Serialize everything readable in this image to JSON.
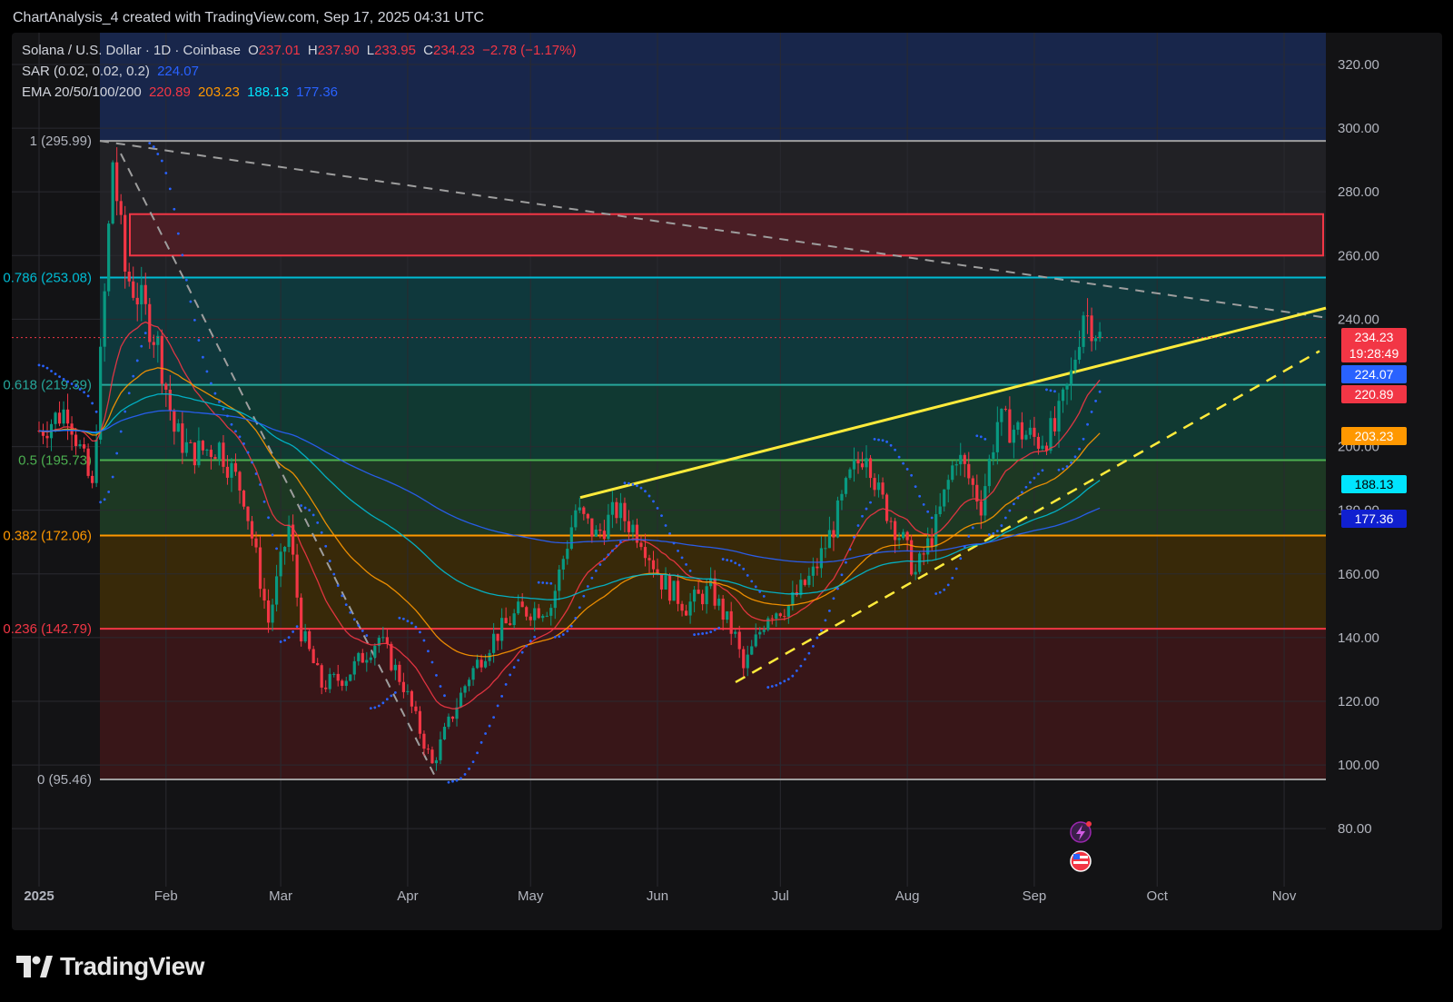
{
  "header": {
    "caption": "ChartAnalysis_4 created with TradingView.com, Sep 17, 2025 04:31 UTC"
  },
  "legend": {
    "symbol": "Solana / U.S. Dollar · 1D · Coinbase",
    "o_label": "O",
    "o_value": "237.01",
    "h_label": "H",
    "h_value": "237.90",
    "l_label": "L",
    "l_value": "233.95",
    "c_label": "C",
    "c_value": "234.23",
    "change": "−2.78 (−1.17%)",
    "sar_label": "SAR (0.02, 0.02, 0.2)",
    "sar_value": "224.07",
    "ema_label": "EMA 20/50/100/200",
    "ema20": "220.89",
    "ema50": "203.23",
    "ema100": "188.13",
    "ema200": "177.36"
  },
  "price_tags": {
    "last": "234.23",
    "countdown": "19:28:49",
    "sar": "224.07",
    "ema20": "220.89",
    "ema50": "203.23",
    "ema100": "188.13",
    "ema200": "177.36"
  },
  "colors": {
    "bull": "#089981",
    "bear": "#f23645",
    "sar": "#2962ff",
    "ema20": "#f23645",
    "ema50": "#ff9800",
    "ema100": "#00bcd4",
    "ema200": "#2962ff",
    "trendline": "#ffeb3b",
    "fib_1": "#9e9e9e",
    "fib_786": "#00bcd4",
    "fib_618": "#26a69a",
    "fib_5": "#4caf50",
    "fib_382": "#ff9800",
    "fib_236": "#f23645"
  },
  "footer": {
    "brand": "TradingView",
    "logo_icon": "tradingview-logo-icon"
  },
  "chart_data": {
    "type": "candlestick",
    "title": "Solana / U.S. Dollar · 1D · Coinbase",
    "y_axis": {
      "ticks": [
        "320.00",
        "300.00",
        "280.00",
        "260.00",
        "240.00",
        "200.00",
        "180.00",
        "160.00",
        "140.00",
        "120.00",
        "100.00",
        "80.00"
      ],
      "range": [
        70,
        330
      ],
      "side": "right"
    },
    "x_axis": {
      "ticks": [
        "2025",
        "Feb",
        "Mar",
        "Apr",
        "May",
        "Jun",
        "Jul",
        "Aug",
        "Sep",
        "Oct",
        "Nov"
      ]
    },
    "fibonacci": [
      {
        "level": "1",
        "label": "1 (295.99)",
        "price": 295.99
      },
      {
        "level": "0.786",
        "label": "0.786 (253.08)",
        "price": 253.08
      },
      {
        "level": "0.618",
        "label": "0.618 (219.39)",
        "price": 219.39
      },
      {
        "level": "0.5",
        "label": "0.5 (195.73)",
        "price": 195.73
      },
      {
        "level": "0.382",
        "label": "0.382 (172.06)",
        "price": 172.06
      },
      {
        "level": "0.236",
        "label": "0.236 (142.79)",
        "price": 142.79
      },
      {
        "level": "0",
        "label": "0 (95.46)",
        "price": 95.46
      }
    ],
    "resistance_zone": [
      260,
      273
    ],
    "last_price": 234.23,
    "price_points": [
      [
        "2025-01-01",
        205
      ],
      [
        "2025-01-08",
        212
      ],
      [
        "2025-01-14",
        186
      ],
      [
        "2025-01-18",
        268
      ],
      [
        "2025-01-19",
        290
      ],
      [
        "2025-01-22",
        255
      ],
      [
        "2025-01-26",
        245
      ],
      [
        "2025-01-30",
        232
      ],
      [
        "2025-02-03",
        205
      ],
      [
        "2025-02-07",
        198
      ],
      [
        "2025-02-14",
        200
      ],
      [
        "2025-02-20",
        185
      ],
      [
        "2025-02-26",
        145
      ],
      [
        "2025-03-03",
        175
      ],
      [
        "2025-03-06",
        142
      ],
      [
        "2025-03-11",
        125
      ],
      [
        "2025-03-17",
        128
      ],
      [
        "2025-03-25",
        140
      ],
      [
        "2025-03-31",
        125
      ],
      [
        "2025-04-07",
        100
      ],
      [
        "2025-04-10",
        110
      ],
      [
        "2025-04-16",
        128
      ],
      [
        "2025-04-22",
        140
      ],
      [
        "2025-04-28",
        148
      ],
      [
        "2025-05-06",
        150
      ],
      [
        "2025-05-12",
        180
      ],
      [
        "2025-05-17",
        172
      ],
      [
        "2025-05-22",
        180
      ],
      [
        "2025-05-28",
        172
      ],
      [
        "2025-06-02",
        158
      ],
      [
        "2025-06-08",
        150
      ],
      [
        "2025-06-14",
        155
      ],
      [
        "2025-06-20",
        140
      ],
      [
        "2025-06-22",
        130
      ],
      [
        "2025-06-28",
        148
      ],
      [
        "2025-07-03",
        150
      ],
      [
        "2025-07-09",
        160
      ],
      [
        "2025-07-14",
        175
      ],
      [
        "2025-07-18",
        190
      ],
      [
        "2025-07-22",
        200
      ],
      [
        "2025-07-25",
        185
      ],
      [
        "2025-07-31",
        170
      ],
      [
        "2025-08-03",
        160
      ],
      [
        "2025-08-08",
        175
      ],
      [
        "2025-08-13",
        198
      ],
      [
        "2025-08-19",
        182
      ],
      [
        "2025-08-23",
        208
      ],
      [
        "2025-08-28",
        205
      ],
      [
        "2025-09-02",
        202
      ],
      [
        "2025-09-06",
        205
      ],
      [
        "2025-09-10",
        222
      ],
      [
        "2025-09-13",
        243
      ],
      [
        "2025-09-16",
        237
      ],
      [
        "2025-09-17",
        234.23
      ]
    ]
  }
}
